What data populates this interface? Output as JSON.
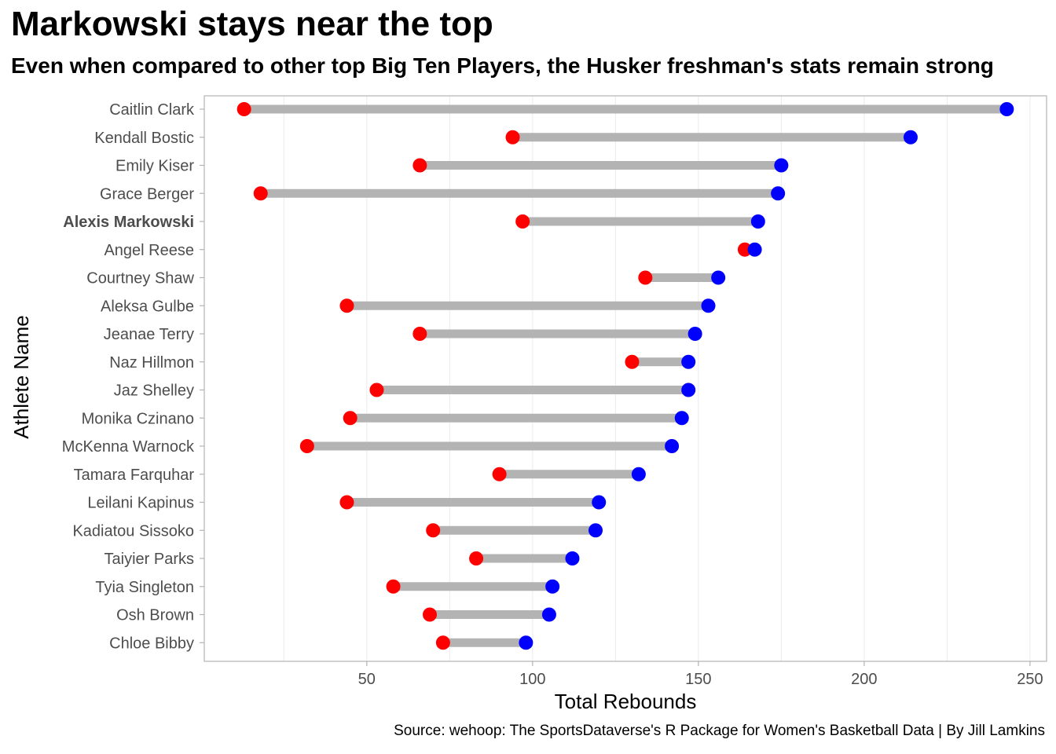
{
  "title": "Markowski stays near the top",
  "subtitle": "Even when compared to other top Big Ten Players, the Husker freshman's stats remain strong",
  "caption": "Source: wehoop: The SportsDataverse's R Package for Women's Basketball Data | By Jill Lamkins",
  "colors": {
    "low_point": "#ff0000",
    "high_point": "#0000ff",
    "segment": "#b3b3b3",
    "grid": "#ebebeb",
    "panel_border": "#b3b3b3",
    "tick_text": "#4d4d4d"
  },
  "chart_data": {
    "type": "dumbbell",
    "xlabel": "Total Rebounds",
    "ylabel": "Athlete Name",
    "xlim": [
      1,
      255
    ],
    "x_ticks": [
      50,
      100,
      150,
      200,
      250
    ],
    "grid": "vertical major",
    "highlighted_category": "Alexis Markowski",
    "categories": [
      "Caitlin Clark",
      "Kendall Bostic",
      "Emily Kiser",
      "Grace Berger",
      "Alexis Markowski",
      "Angel Reese",
      "Courtney Shaw",
      "Aleksa Gulbe",
      "Jeanae Terry",
      "Naz Hillmon",
      "Jaz Shelley",
      "Monika Czinano",
      "McKenna Warnock",
      "Tamara Farquhar",
      "Leilani Kapinus",
      "Kadiatou Sissoko",
      "Taiyier Parks",
      "Tyia Singleton",
      "Osh Brown",
      "Chloe Bibby"
    ],
    "series": [
      {
        "values": [
          13,
          94,
          66,
          18,
          97,
          164,
          134,
          44,
          66,
          130,
          53,
          45,
          32,
          90,
          44,
          70,
          83,
          58,
          69,
          73
        ]
      },
      {
        "values": [
          243,
          214,
          175,
          174,
          168,
          167,
          156,
          153,
          149,
          147,
          147,
          145,
          142,
          132,
          120,
          119,
          112,
          106,
          105,
          98
        ]
      }
    ]
  }
}
